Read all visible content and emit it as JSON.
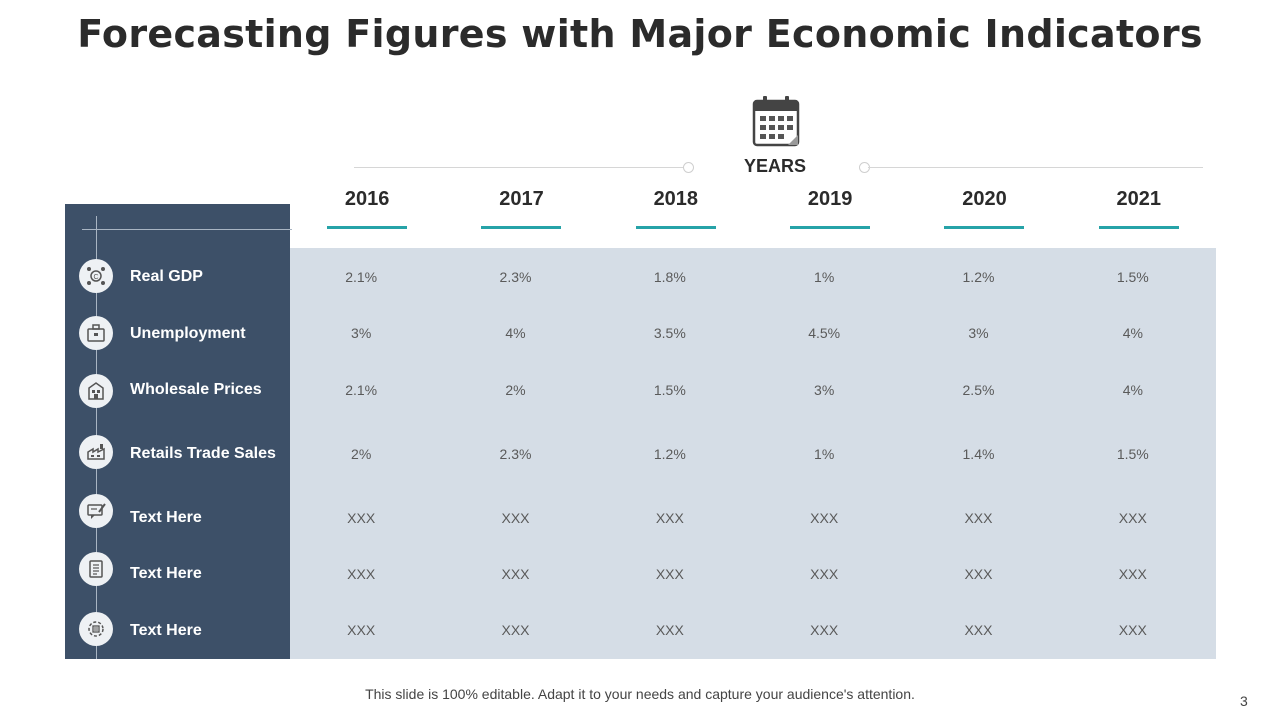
{
  "title": "Forecasting Figures with Major Economic Indicators",
  "years_label": "YEARS",
  "years": [
    "2016",
    "2017",
    "2018",
    "2019",
    "2020",
    "2021"
  ],
  "rows": [
    {
      "label": "Real GDP",
      "icon": "gdp-icon",
      "values": [
        "2.1%",
        "2.3%",
        "1.8%",
        "1%",
        "1.2%",
        "1.5%"
      ]
    },
    {
      "label": "Unemployment",
      "icon": "briefcase-icon",
      "values": [
        "3%",
        "4%",
        "3.5%",
        "4.5%",
        "3%",
        "4%"
      ]
    },
    {
      "label": "Wholesale Prices",
      "icon": "building-icon",
      "values": [
        "2.1%",
        "2%",
        "1.5%",
        "3%",
        "2.5%",
        "4%"
      ]
    },
    {
      "label": "Retails Trade Sales",
      "icon": "factory-icon",
      "values": [
        "2%",
        "2.3%",
        "1.2%",
        "1%",
        "1.4%",
        "1.5%"
      ]
    },
    {
      "label": "Text Here",
      "icon": "chat-edit-icon",
      "values": [
        "XXX",
        "XXX",
        "XXX",
        "XXX",
        "XXX",
        "XXX"
      ]
    },
    {
      "label": "Text Here",
      "icon": "document-icon",
      "values": [
        "XXX",
        "XXX",
        "XXX",
        "XXX",
        "XXX",
        "XXX"
      ]
    },
    {
      "label": "Text Here",
      "icon": "gear-document-icon",
      "values": [
        "XXX",
        "XXX",
        "XXX",
        "XXX",
        "XXX",
        "XXX"
      ]
    }
  ],
  "footer": "This slide is 100% editable. Adapt it to your needs and capture your audience's attention.",
  "page_number": "3",
  "colors": {
    "sidebar": "#3d5068",
    "grid": "#d5dde6",
    "accent": "#26a3a8"
  }
}
